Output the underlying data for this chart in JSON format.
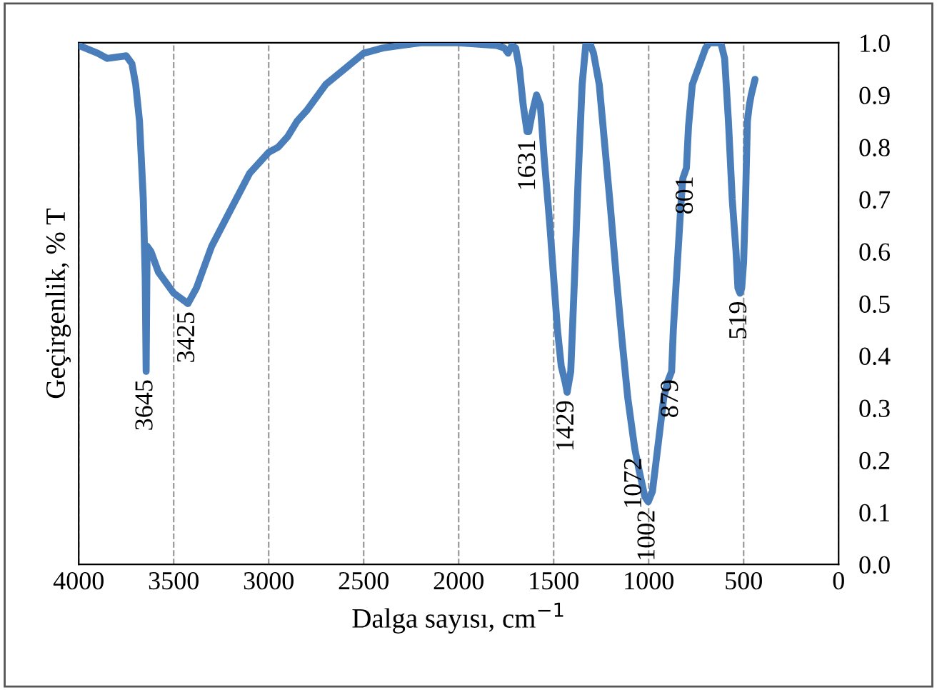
{
  "chart_data": {
    "type": "line",
    "xlabel": "Dalga sayısı, cm$^{−1}$",
    "ylabel": "Geçirgenlik, % T",
    "xlim": [
      4000,
      0
    ],
    "ylim": [
      0,
      1
    ],
    "xticks": [
      4000,
      3500,
      3000,
      2500,
      2000,
      1500,
      1000,
      500,
      0
    ],
    "yticks": [
      {
        "value": 0,
        "label": "0.0"
      },
      {
        "value": 0.1,
        "label": "0.1"
      },
      {
        "value": 0.2,
        "label": "0.2"
      },
      {
        "value": 0.3,
        "label": "0.3"
      },
      {
        "value": 0.4,
        "label": "0.4"
      },
      {
        "value": 0.5,
        "label": "0.5"
      },
      {
        "value": 0.6,
        "label": "0.6"
      },
      {
        "value": 0.7,
        "label": "0.7"
      },
      {
        "value": 0.8,
        "label": "0.8"
      },
      {
        "value": 0.9,
        "label": "0.9"
      },
      {
        "value": 1,
        "label": "1.0"
      }
    ],
    "grid": "x",
    "marker": "none",
    "line_style": "solid",
    "series": [
      {
        "color": "#4a7ebb",
        "x": [
          4000,
          3900,
          3850,
          3750,
          3720,
          3700,
          3680,
          3660,
          3650,
          3645,
          3640,
          3620,
          3580,
          3500,
          3425,
          3380,
          3300,
          3200,
          3100,
          3000,
          2950,
          2900,
          2850,
          2800,
          2700,
          2600,
          2550,
          2500,
          2400,
          2300,
          2200,
          2000,
          1800,
          1760,
          1740,
          1720,
          1700,
          1680,
          1660,
          1640,
          1631,
          1610,
          1590,
          1570,
          1550,
          1520,
          1500,
          1480,
          1460,
          1440,
          1429,
          1410,
          1390,
          1370,
          1350,
          1330,
          1310,
          1290,
          1260,
          1230,
          1200,
          1170,
          1140,
          1110,
          1080,
          1072,
          1050,
          1020,
          1002,
          980,
          960,
          940,
          920,
          900,
          879,
          870,
          850,
          830,
          820,
          801,
          790,
          770,
          750,
          730,
          700,
          680,
          620,
          600,
          580,
          560,
          540,
          530,
          519,
          510,
          500,
          490,
          480,
          470,
          460,
          440
        ],
        "values": [
          0.995,
          0.98,
          0.97,
          0.975,
          0.96,
          0.92,
          0.85,
          0.7,
          0.55,
          0.37,
          0.61,
          0.6,
          0.56,
          0.52,
          0.5,
          0.53,
          0.61,
          0.68,
          0.75,
          0.79,
          0.8,
          0.82,
          0.85,
          0.87,
          0.92,
          0.95,
          0.965,
          0.98,
          0.99,
          0.995,
          1.0,
          1.0,
          0.995,
          0.99,
          0.98,
          0.995,
          0.99,
          0.95,
          0.88,
          0.83,
          0.83,
          0.87,
          0.9,
          0.88,
          0.78,
          0.65,
          0.55,
          0.45,
          0.38,
          0.35,
          0.33,
          0.37,
          0.55,
          0.75,
          0.92,
          1.0,
          1.0,
          0.98,
          0.92,
          0.8,
          0.68,
          0.55,
          0.43,
          0.32,
          0.24,
          0.22,
          0.18,
          0.13,
          0.12,
          0.14,
          0.2,
          0.26,
          0.32,
          0.35,
          0.37,
          0.45,
          0.57,
          0.69,
          0.74,
          0.76,
          0.84,
          0.92,
          0.94,
          0.96,
          0.99,
          1.0,
          1.0,
          0.97,
          0.85,
          0.7,
          0.6,
          0.53,
          0.52,
          0.53,
          0.58,
          0.7,
          0.85,
          0.88,
          0.9,
          0.93
        ]
      }
    ],
    "annotations": [
      {
        "text": "3645",
        "x": 3645,
        "y": 0.37
      },
      {
        "text": "3425",
        "x": 3425,
        "y": 0.5
      },
      {
        "text": "1631",
        "x": 1631,
        "y": 0.83
      },
      {
        "text": "1429",
        "x": 1429,
        "y": 0.33
      },
      {
        "text": "1072",
        "x": 1072,
        "y": 0.22
      },
      {
        "text": "1002",
        "x": 1002,
        "y": 0.12
      },
      {
        "text": "879",
        "x": 879,
        "y": 0.37
      },
      {
        "text": "801",
        "x": 801,
        "y": 0.76
      },
      {
        "text": "519",
        "x": 519,
        "y": 0.52
      }
    ]
  }
}
